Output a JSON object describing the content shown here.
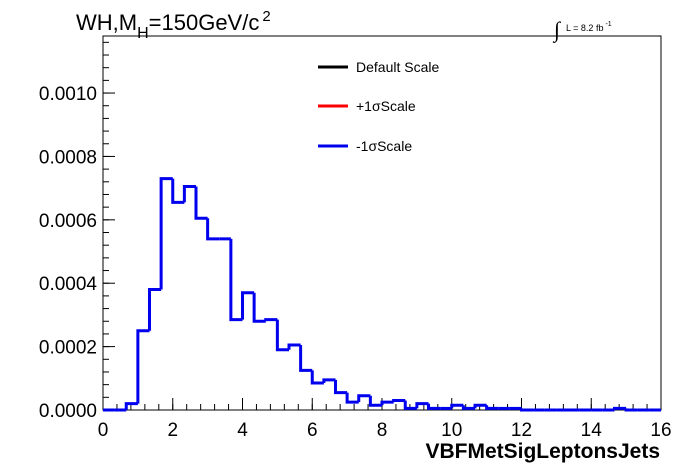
{
  "chart_data": {
    "type": "histogram",
    "title_main": "WH,M",
    "title_sub": "H",
    "title_rest": "=150GeV/c",
    "title_sup": "2",
    "luminosity": {
      "integral": "∫",
      "text": "L = 8.2 fb",
      "sup": "-1"
    },
    "xlabel": "VBFMetSigLeptonsJets",
    "ylabel": "",
    "xlim": [
      0,
      16
    ],
    "ylim": [
      0,
      0.00118
    ],
    "x_ticks": [
      "0",
      "2",
      "4",
      "6",
      "8",
      "10",
      "12",
      "14",
      "16"
    ],
    "y_ticks": [
      "0.0000",
      "0.0002",
      "0.0004",
      "0.0006",
      "0.0008",
      "0.0010"
    ],
    "bin_width": 0.333333,
    "bin_edges_start": 0,
    "legend": [
      {
        "label": "Default Scale",
        "color": "#000000"
      },
      {
        "label": "+1σScale",
        "color": "#ff0000"
      },
      {
        "label": "-1σScale",
        "color": "#0000ee"
      }
    ],
    "series": [
      {
        "name": "-1σScale",
        "color": "#0000ee",
        "values": [
          0,
          0,
          2e-05,
          0.00025,
          0.00038,
          0.00073,
          0.000655,
          0.000705,
          0.000605,
          0.00054,
          0.00054,
          0.000285,
          0.00037,
          0.00028,
          0.000285,
          0.00019,
          0.000205,
          0.000125,
          8.5e-05,
          9.5e-05,
          5.5e-05,
          2.5e-05,
          4.5e-05,
          1.5e-05,
          2.5e-05,
          3e-05,
          5e-06,
          2e-05,
          5e-06,
          5e-06,
          1.5e-05,
          5e-06,
          1.5e-05,
          5e-06,
          5e-06,
          5e-06,
          0,
          0,
          0,
          0,
          0,
          0,
          0,
          0,
          5e-06,
          0,
          0,
          0
        ]
      }
    ]
  }
}
